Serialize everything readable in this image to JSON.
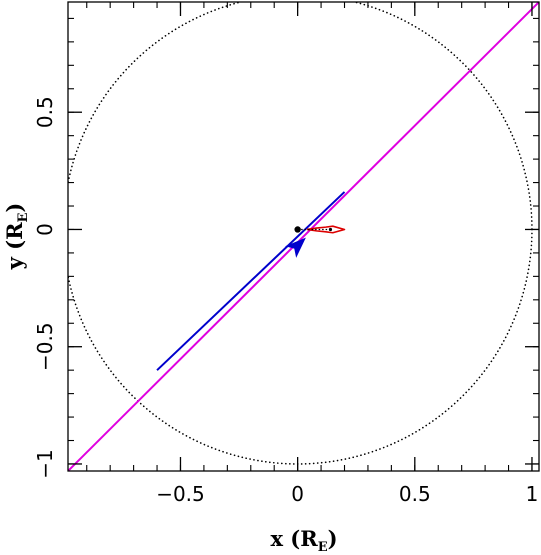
{
  "chart_data": {
    "type": "line",
    "title": "",
    "xlabel": "x (R",
    "xlabel_sub": "E",
    "xlabel_close": ")",
    "ylabel": "y (R",
    "ylabel_sub": "E",
    "ylabel_close": ")",
    "xlim": [
      -0.98,
      1.03
    ],
    "ylim": [
      -1.03,
      0.97
    ],
    "x_ticks": [
      -0.5,
      0,
      0.5,
      1
    ],
    "x_tick_labels": [
      "−0.5",
      "0",
      "0.5",
      "1"
    ],
    "y_ticks": [
      -1,
      -0.5,
      0,
      0.5
    ],
    "y_tick_labels": [
      "−1",
      "−0.5",
      "0",
      "0.5"
    ],
    "grid": false,
    "einstein_ring": {
      "center": [
        0,
        0
      ],
      "radius": 1,
      "style": "dotted",
      "color": "#000000"
    },
    "series": [
      {
        "role": "source trajectory",
        "color": "#e000e0",
        "x": [
          -0.98,
          1.03
        ],
        "y": [
          -1.03,
          0.97
        ]
      },
      {
        "role": "source trajectory segment",
        "color": "#0000cc",
        "x": [
          -0.6,
          0.2
        ],
        "y": [
          -0.6,
          0.16
        ],
        "arrow_at": [
          -0.002,
          -0.07
        ]
      },
      {
        "role": "caustic",
        "color": "#dd0000",
        "x": [
          0.04,
          0.08,
          0.12,
          0.15,
          0.2,
          0.15,
          0.12,
          0.08,
          0.04
        ],
        "y": [
          0.0,
          0.006,
          0.01,
          0.014,
          0.0,
          -0.014,
          -0.01,
          -0.006,
          0.0
        ]
      },
      {
        "role": "lens components",
        "color": "#000000",
        "x": [
          0.0,
          0.14
        ],
        "y": [
          0.0,
          0.0
        ],
        "marker_sizes": [
          3.2,
          1.6
        ]
      }
    ]
  }
}
